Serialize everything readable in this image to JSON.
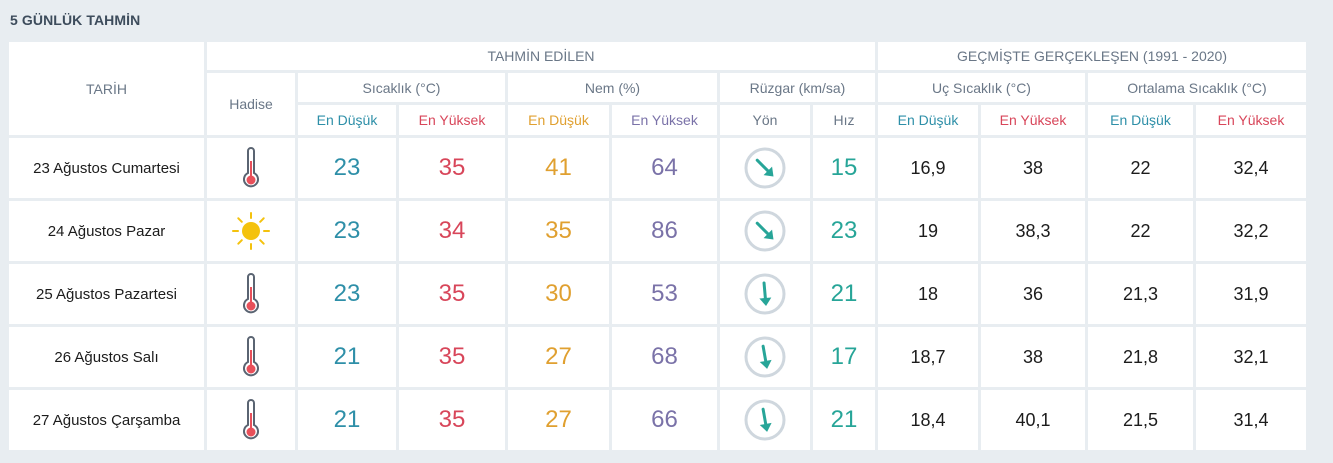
{
  "title": "5 GÜNLÜK TAHMİN",
  "headers": {
    "tarih": "TARİH",
    "tahmin": "TAHMİN EDİLEN",
    "gecmis": "GEÇMİŞTE GERÇEKLEŞEN (1991 - 2020)",
    "hadise": "Hadise",
    "sicaklik": "Sıcaklık (°C)",
    "nem": "Nem (%)",
    "ruzgar": "Rüzgar (km/sa)",
    "uc_sicaklik": "Uç Sıcaklık (°C)",
    "ortalama_sicaklik": "Ortalama Sıcaklık (°C)",
    "en_dusuk": "En Düşük",
    "en_yuksek": "En Yüksek",
    "yon": "Yön",
    "hiz": "Hız"
  },
  "colors": {
    "low": "#2e8fa8",
    "high": "#d8465a",
    "humidity_low": "#e0a030",
    "humidity_high": "#7a72a8",
    "wind": "#27a598"
  },
  "rows": [
    {
      "date": "23 Ağustos Cumartesi",
      "icon": "thermometer-icon",
      "temp_low": "23",
      "temp_high": "35",
      "hum_low": "41",
      "hum_high": "64",
      "wind_dir_deg": 135,
      "wind_speed": "15",
      "extreme_low": "16,9",
      "extreme_high": "38",
      "avg_low": "22",
      "avg_high": "32,4"
    },
    {
      "date": "24 Ağustos Pazar",
      "icon": "sun-icon",
      "temp_low": "23",
      "temp_high": "34",
      "hum_low": "35",
      "hum_high": "86",
      "wind_dir_deg": 135,
      "wind_speed": "23",
      "extreme_low": "19",
      "extreme_high": "38,3",
      "avg_low": "22",
      "avg_high": "32,2"
    },
    {
      "date": "25 Ağustos Pazartesi",
      "icon": "thermometer-icon",
      "temp_low": "23",
      "temp_high": "35",
      "hum_low": "30",
      "hum_high": "53",
      "wind_dir_deg": 175,
      "wind_speed": "21",
      "extreme_low": "18",
      "extreme_high": "36",
      "avg_low": "21,3",
      "avg_high": "31,9"
    },
    {
      "date": "26 Ağustos Salı",
      "icon": "thermometer-icon",
      "temp_low": "21",
      "temp_high": "35",
      "hum_low": "27",
      "hum_high": "68",
      "wind_dir_deg": 170,
      "wind_speed": "17",
      "extreme_low": "18,7",
      "extreme_high": "38",
      "avg_low": "21,8",
      "avg_high": "32,1"
    },
    {
      "date": "27 Ağustos Çarşamba",
      "icon": "thermometer-icon",
      "temp_low": "21",
      "temp_high": "35",
      "hum_low": "27",
      "hum_high": "66",
      "wind_dir_deg": 170,
      "wind_speed": "21",
      "extreme_low": "18,4",
      "extreme_high": "40,1",
      "avg_low": "21,5",
      "avg_high": "31,4"
    }
  ]
}
